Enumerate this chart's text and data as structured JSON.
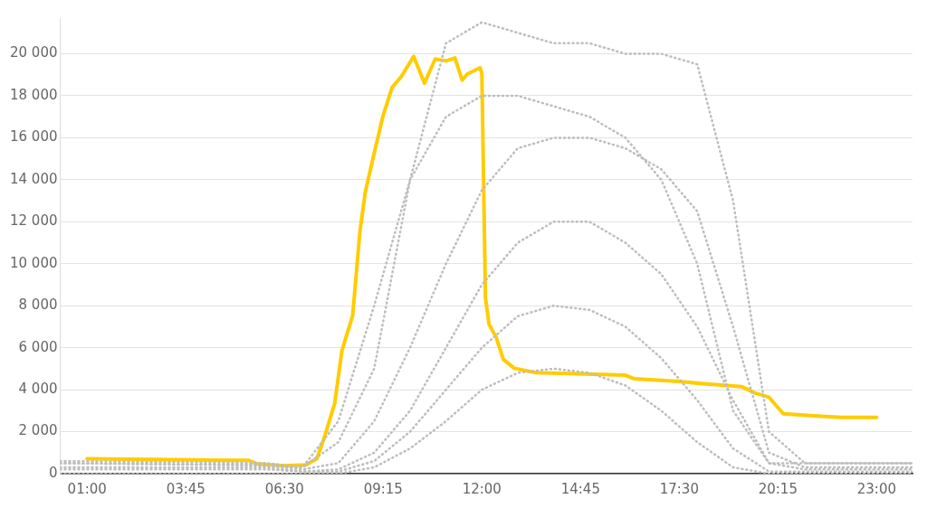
{
  "chart_data": {
    "type": "line",
    "xlim": [
      0.25,
      24
    ],
    "xticks": [
      {
        "value": 1,
        "label": "01:00"
      },
      {
        "value": 3.75,
        "label": "03:45"
      },
      {
        "value": 6.5,
        "label": "06:30"
      },
      {
        "value": 9.25,
        "label": "09:15"
      },
      {
        "value": 12,
        "label": "12:00"
      },
      {
        "value": 14.75,
        "label": "14:45"
      },
      {
        "value": 17.5,
        "label": "17:30"
      },
      {
        "value": 20.25,
        "label": "20:15"
      },
      {
        "value": 23,
        "label": "23:00"
      }
    ],
    "ylim": [
      0,
      21700
    ],
    "yticks": [
      {
        "value": 0,
        "label": "0"
      },
      {
        "value": 2000,
        "label": "2 000"
      },
      {
        "value": 4000,
        "label": "4 000"
      },
      {
        "value": 6000,
        "label": "6 000"
      },
      {
        "value": 8000,
        "label": "8 000"
      },
      {
        "value": 10000,
        "label": "10 000"
      },
      {
        "value": 12000,
        "label": "12 000"
      },
      {
        "value": 14000,
        "label": "14 000"
      },
      {
        "value": 16000,
        "label": "16 000"
      },
      {
        "value": 18000,
        "label": "18 000"
      },
      {
        "value": 20000,
        "label": "20 000"
      }
    ],
    "grid": "y",
    "legend": false,
    "marker": "none",
    "x": [
      0.25,
      6,
      7,
      8,
      9,
      10,
      11,
      12,
      13,
      14,
      15,
      16,
      17,
      18,
      19,
      20,
      21,
      22,
      24
    ],
    "series": [
      {
        "color": "#bdbdbd",
        "line_style": "dotted",
        "values": [
          500,
          400,
          300,
          1500,
          5000,
          14000,
          20500,
          21500,
          21000,
          20500,
          20500,
          20000,
          20000,
          19500,
          13000,
          2000,
          500,
          500,
          500
        ]
      },
      {
        "color": "#bdbdbd",
        "line_style": "dotted",
        "values": [
          500,
          400,
          200,
          500,
          2500,
          6000,
          10000,
          13500,
          15500,
          16000,
          16000,
          15500,
          14500,
          12500,
          7000,
          1000,
          300,
          300,
          300
        ]
      },
      {
        "color": "#bdbdbd",
        "line_style": "dotted",
        "values": [
          300,
          300,
          100,
          200,
          1000,
          3000,
          6000,
          9000,
          11000,
          12000,
          12000,
          11000,
          9500,
          7000,
          3500,
          500,
          200,
          200,
          200
        ]
      },
      {
        "color": "#bdbdbd",
        "line_style": "dotted",
        "values": [
          0,
          0,
          0,
          0,
          300,
          1200,
          2500,
          4000,
          4800,
          5000,
          4800,
          4200,
          3000,
          1500,
          300,
          0,
          0,
          0,
          0
        ]
      },
      {
        "color": "#bdbdbd",
        "line_style": "dotted",
        "values": [
          600,
          500,
          300,
          2500,
          8000,
          14000,
          17000,
          18000,
          18000,
          17500,
          17000,
          16000,
          14000,
          10000,
          3000,
          500,
          500,
          500,
          500
        ]
      },
      {
        "color": "#bdbdbd",
        "line_style": "dotted",
        "values": [
          200,
          200,
          100,
          100,
          600,
          2000,
          4000,
          6000,
          7500,
          8000,
          7800,
          7000,
          5500,
          3500,
          1200,
          100,
          100,
          100,
          100
        ]
      },
      {
        "color": "#ffcc00",
        "line_style": "solid",
        "x": [
          1,
          5.5,
          5.75,
          6.5,
          7.1,
          7.4,
          7.6,
          7.9,
          8.1,
          8.4,
          8.6,
          8.75,
          9,
          9.25,
          9.5,
          9.75,
          10.1,
          10.4,
          10.7,
          11,
          11.25,
          11.45,
          11.6,
          11.95,
          12,
          12.1,
          12.2,
          12.4,
          12.6,
          12.9,
          13.5,
          16,
          16.25,
          17.5,
          18.25,
          19.25,
          19.6,
          20,
          20.4,
          21.25,
          22,
          23
        ],
        "values": [
          710,
          630,
          460,
          380,
          420,
          710,
          1670,
          3350,
          5860,
          7530,
          11500,
          13400,
          15270,
          17070,
          18400,
          18900,
          19870,
          18600,
          19750,
          19660,
          19800,
          18740,
          19040,
          19330,
          19040,
          8370,
          7110,
          6490,
          5440,
          5020,
          4810,
          4690,
          4520,
          4390,
          4270,
          4140,
          3850,
          3640,
          2850,
          2760,
          2680,
          2680
        ]
      }
    ]
  }
}
